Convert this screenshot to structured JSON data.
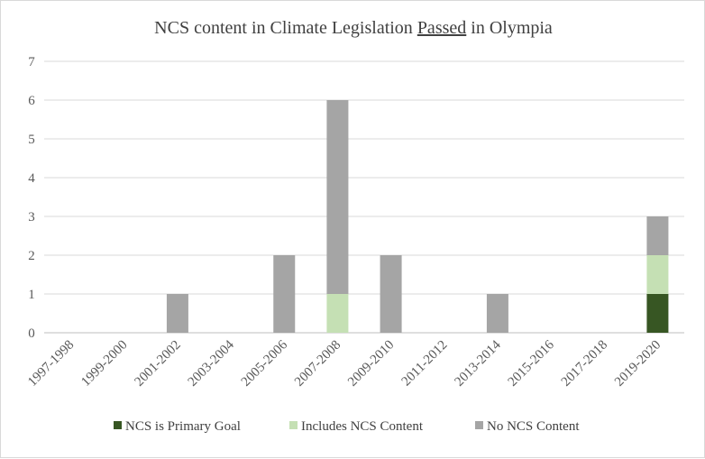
{
  "chart_data": {
    "type": "bar",
    "stacked": true,
    "title": {
      "before": "NCS content in Climate Legislation ",
      "underlined": "Passed",
      "after": " in Olympia"
    },
    "categories": [
      "1997-1998",
      "1999-2000",
      "2001-2002",
      "2003-2004",
      "2005-2006",
      "2007-2008",
      "2009-2010",
      "2011-2012",
      "2013-2014",
      "2015-2016",
      "2017-2018",
      "2019-2020"
    ],
    "series": [
      {
        "name": "NCS is Primary Goal",
        "color": "#375623",
        "values": [
          0,
          0,
          0,
          0,
          0,
          0,
          0,
          0,
          0,
          0,
          0,
          1
        ]
      },
      {
        "name": "Includes NCS Content",
        "color": "#c5e0b4",
        "values": [
          0,
          0,
          0,
          0,
          0,
          1,
          0,
          0,
          0,
          0,
          0,
          1
        ]
      },
      {
        "name": "No NCS Content",
        "color": "#a5a5a5",
        "values": [
          0,
          0,
          1,
          0,
          2,
          5,
          2,
          0,
          1,
          0,
          0,
          1
        ]
      }
    ],
    "ylim": [
      0,
      7
    ],
    "yticks": [
      "0",
      "1",
      "2",
      "3",
      "4",
      "5",
      "6",
      "7"
    ],
    "grid": true,
    "legend_position": "bottom"
  }
}
